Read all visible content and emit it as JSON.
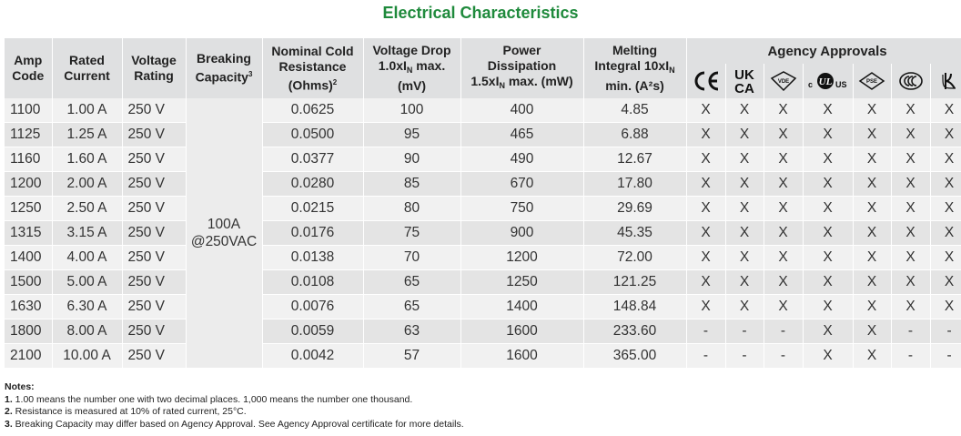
{
  "title": "Electrical Characteristics",
  "headers": {
    "amp_code": [
      "Amp",
      "Code"
    ],
    "rated_current": [
      "Rated",
      "Current"
    ],
    "voltage_rating": [
      "Voltage",
      "Rating"
    ],
    "breaking_capacity": [
      "Breaking",
      "Capacity"
    ],
    "breaking_capacity_sup": "3",
    "resistance": [
      "Nominal Cold",
      "Resistance",
      "(Ohms)"
    ],
    "resistance_sup": "2",
    "voltage_drop": [
      "Voltage Drop",
      "1.0xI",
      "N",
      " max.",
      "(mV)"
    ],
    "power": [
      "Power",
      "Dissipation",
      "1.5xI",
      "N",
      " max. (mW)"
    ],
    "melting": [
      "Melting",
      "Integral 10xI",
      "N",
      "min. (A²s)"
    ],
    "agency": "Agency Approvals"
  },
  "agency_icons": [
    "ce-mark-icon",
    "ukca-mark-icon",
    "vde-mark-icon",
    "cul-us-mark-icon",
    "pse-mark-icon",
    "ccc-mark-icon",
    "kc-mark-icon"
  ],
  "agency_text": {
    "ukca_top": "UK",
    "ukca_bottom": "CA",
    "us": "US",
    "vde": "VDE",
    "pse": "PSE"
  },
  "breaking_capacity_value": [
    "100A",
    "@250VAC"
  ],
  "rows": [
    {
      "amp": "1100",
      "current": "1.00 A",
      "voltage": "250 V",
      "resistance": "0.0625",
      "vdrop": "100",
      "power": "400",
      "melting": "4.85",
      "approvals": [
        "X",
        "X",
        "X",
        "X",
        "X",
        "X",
        "X"
      ]
    },
    {
      "amp": "1125",
      "current": "1.25 A",
      "voltage": "250 V",
      "resistance": "0.0500",
      "vdrop": "95",
      "power": "465",
      "melting": "6.88",
      "approvals": [
        "X",
        "X",
        "X",
        "X",
        "X",
        "X",
        "X"
      ]
    },
    {
      "amp": "1160",
      "current": "1.60 A",
      "voltage": "250 V",
      "resistance": "0.0377",
      "vdrop": "90",
      "power": "490",
      "melting": "12.67",
      "approvals": [
        "X",
        "X",
        "X",
        "X",
        "X",
        "X",
        "X"
      ]
    },
    {
      "amp": "1200",
      "current": "2.00 A",
      "voltage": "250 V",
      "resistance": "0.0280",
      "vdrop": "85",
      "power": "670",
      "melting": "17.80",
      "approvals": [
        "X",
        "X",
        "X",
        "X",
        "X",
        "X",
        "X"
      ]
    },
    {
      "amp": "1250",
      "current": "2.50 A",
      "voltage": "250 V",
      "resistance": "0.0215",
      "vdrop": "80",
      "power": "750",
      "melting": "29.69",
      "approvals": [
        "X",
        "X",
        "X",
        "X",
        "X",
        "X",
        "X"
      ]
    },
    {
      "amp": "1315",
      "current": "3.15 A",
      "voltage": "250 V",
      "resistance": "0.0176",
      "vdrop": "75",
      "power": "900",
      "melting": "45.35",
      "approvals": [
        "X",
        "X",
        "X",
        "X",
        "X",
        "X",
        "X"
      ]
    },
    {
      "amp": "1400",
      "current": "4.00 A",
      "voltage": "250 V",
      "resistance": "0.0138",
      "vdrop": "70",
      "power": "1200",
      "melting": "72.00",
      "approvals": [
        "X",
        "X",
        "X",
        "X",
        "X",
        "X",
        "X"
      ]
    },
    {
      "amp": "1500",
      "current": "5.00 A",
      "voltage": "250 V",
      "resistance": "0.0108",
      "vdrop": "65",
      "power": "1250",
      "melting": "121.25",
      "approvals": [
        "X",
        "X",
        "X",
        "X",
        "X",
        "X",
        "X"
      ]
    },
    {
      "amp": "1630",
      "current": "6.30 A",
      "voltage": "250 V",
      "resistance": "0.0076",
      "vdrop": "65",
      "power": "1400",
      "melting": "148.84",
      "approvals": [
        "X",
        "X",
        "X",
        "X",
        "X",
        "X",
        "X"
      ]
    },
    {
      "amp": "1800",
      "current": "8.00 A",
      "voltage": "250 V",
      "resistance": "0.0059",
      "vdrop": "63",
      "power": "1600",
      "melting": "233.60",
      "approvals": [
        "-",
        "-",
        "-",
        "X",
        "X",
        "-",
        "-"
      ]
    },
    {
      "amp": "2100",
      "current": "10.00 A",
      "voltage": "250 V",
      "resistance": "0.0042",
      "vdrop": "57",
      "power": "1600",
      "melting": "365.00",
      "approvals": [
        "-",
        "-",
        "-",
        "X",
        "X",
        "-",
        "-"
      ]
    }
  ],
  "notes": {
    "heading": "Notes:",
    "items": [
      {
        "num": "1.",
        "text": " 1.00 means the number one with two decimal places. 1,000 means the number one thousand."
      },
      {
        "num": "2.",
        "text": " Resistance is measured at 10% of rated current, 25°C."
      },
      {
        "num": "3.",
        "text": " Breaking Capacity may differ based on Agency Approval.  See Agency Approval certificate for more details."
      }
    ]
  }
}
